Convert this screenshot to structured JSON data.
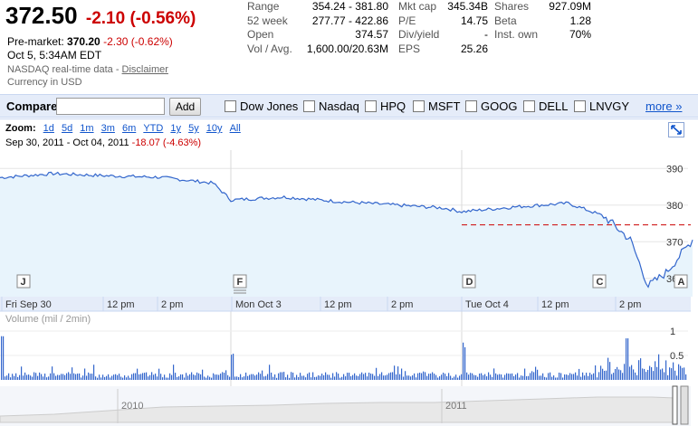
{
  "quote": {
    "price": "372.50",
    "change": "-2.10 (-0.56%)",
    "premarket_label": "Pre-market:",
    "premarket_price": "370.20",
    "premarket_change": "-2.30 (-0.62%)",
    "time": "Oct 5, 5:34AM EDT",
    "source": "NASDAQ real-time data - ",
    "disclaimer": "Disclaimer",
    "currency": "Currency in USD",
    "colors": {
      "negative": "#cc0000",
      "link": "#1155cc"
    }
  },
  "stats": [
    [
      {
        "k": "Range",
        "v": "354.24 - 381.80"
      },
      {
        "k": "52 week",
        "v": "277.77 - 422.86"
      },
      {
        "k": "Open",
        "v": "374.57"
      },
      {
        "k": "Vol / Avg.",
        "v": "1,600.00/20.63M"
      }
    ],
    [
      {
        "k": "Mkt cap",
        "v": "345.34B"
      },
      {
        "k": "P/E",
        "v": "14.75"
      },
      {
        "k": "Div/yield",
        "v": "-"
      },
      {
        "k": "EPS",
        "v": "25.26"
      }
    ],
    [
      {
        "k": "Shares",
        "v": "927.09M"
      },
      {
        "k": "Beta",
        "v": "1.28"
      },
      {
        "k": "Inst. own",
        "v": "70%"
      }
    ]
  ],
  "compare": {
    "label": "Compare:",
    "input_value": "",
    "add_label": "Add",
    "items": [
      "Dow Jones",
      "Nasdaq",
      "HPQ",
      "MSFT",
      "GOOG",
      "DELL",
      "LNVGY"
    ],
    "more_label": "more »"
  },
  "zoom": {
    "label": "Zoom:",
    "options": [
      "1d",
      "5d",
      "1m",
      "3m",
      "6m",
      "YTD",
      "1y",
      "5y",
      "10y",
      "All"
    ]
  },
  "range": {
    "start": "Sep 30, 2011",
    "sep": " - ",
    "end": "Oct 04, 2011",
    "change": "-18.07 (-4.63%)"
  },
  "chart_data": {
    "type": "line",
    "title": "",
    "series": [
      {
        "name": "",
        "x": [
          "Sep 30 09:30",
          "Sep 30 11:00",
          "Sep 30 12:30",
          "Sep 30 14:00",
          "Sep 30 15:30",
          "Oct 3 09:30",
          "Oct 3 11:00",
          "Oct 3 12:30",
          "Oct 3 14:00",
          "Oct 3 15:30",
          "Oct 4 09:30",
          "Oct 4 11:00",
          "Oct 4 12:30",
          "Oct 4 13:30",
          "Oct 4 14:15",
          "Oct 4 14:45",
          "Oct 4 15:15",
          "Oct 4 16:00"
        ],
        "values": [
          387.5,
          388.6,
          388.0,
          387.6,
          386.0,
          381.4,
          382.2,
          381.0,
          380.1,
          379.2,
          378.2,
          379.5,
          380.5,
          377.0,
          370.5,
          357.9,
          361.5,
          370.5
        ]
      }
    ],
    "previous_close": 374.6,
    "y_ticks": [
      390,
      380,
      370,
      360
    ],
    "ylim": [
      355,
      395
    ],
    "x_tick_labels": [
      "Fri Sep 30",
      "12 pm",
      "2 pm",
      "Mon Oct 3",
      "12 pm",
      "2 pm",
      "Tue Oct 4",
      "12 pm",
      "2 pm"
    ],
    "flags": [
      "J",
      "F",
      "D",
      "C",
      "A"
    ],
    "volume_label": "Volume (mil / 2min)",
    "volume_ticks": [
      1,
      0.5
    ],
    "navigator_labels": [
      "2010",
      "2011"
    ],
    "grid": true,
    "colors": {
      "line": "#3366cc",
      "fill": "#e8f4fc",
      "prev_close": "#cc0000",
      "volume": "#3366cc"
    }
  }
}
